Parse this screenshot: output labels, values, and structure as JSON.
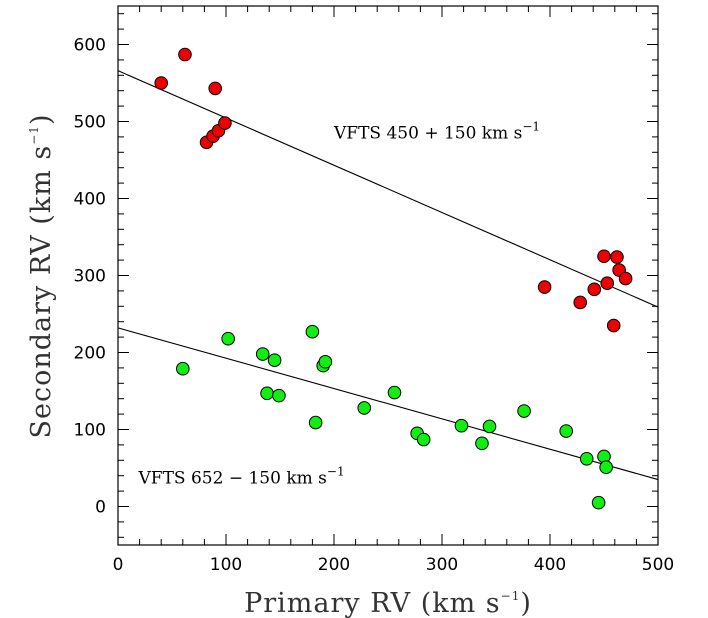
{
  "chart_data": {
    "type": "scatter",
    "xlabel": "Primary RV (km s",
    "xlabel_sup": "−1",
    "xlabel_end": ")",
    "ylabel": "Secondary RV (km s",
    "ylabel_sup": "−1",
    "ylabel_end": ")",
    "xlim": [
      0,
      500
    ],
    "ylim": [
      -50,
      650
    ],
    "x_ticks": [
      0,
      100,
      200,
      300,
      400,
      500
    ],
    "y_ticks": [
      0,
      100,
      200,
      300,
      400,
      500,
      600
    ],
    "x_tick_labels": [
      "0",
      "100",
      "200",
      "300",
      "400",
      "500"
    ],
    "y_tick_labels": [
      "0",
      "100",
      "200",
      "300",
      "400",
      "500",
      "600"
    ],
    "series": [
      {
        "color": "#ee0000",
        "points": [
          [
            40,
            550
          ],
          [
            62,
            587
          ],
          [
            90,
            543
          ],
          [
            82,
            473
          ],
          [
            88,
            481
          ],
          [
            93,
            488
          ],
          [
            99,
            498
          ],
          [
            395,
            285
          ],
          [
            428,
            265
          ],
          [
            441,
            282
          ],
          [
            450,
            325
          ],
          [
            453,
            290
          ],
          [
            462,
            324
          ],
          [
            464,
            307
          ],
          [
            470,
            296
          ],
          [
            459,
            235
          ]
        ],
        "fit_line": [
          [
            0,
            566
          ],
          [
            500,
            259
          ]
        ]
      },
      {
        "color": "#11ee11",
        "points": [
          [
            60,
            179
          ],
          [
            102,
            218
          ],
          [
            134,
            198
          ],
          [
            138,
            147
          ],
          [
            145,
            190
          ],
          [
            149,
            144
          ],
          [
            180,
            227
          ],
          [
            183,
            109
          ],
          [
            190,
            183
          ],
          [
            192,
            188
          ],
          [
            228,
            128
          ],
          [
            256,
            148
          ],
          [
            277,
            95
          ],
          [
            283,
            87
          ],
          [
            318,
            105
          ],
          [
            337,
            82
          ],
          [
            344,
            104
          ],
          [
            376,
            124
          ],
          [
            415,
            98
          ],
          [
            434,
            62
          ],
          [
            445,
            5
          ],
          [
            450,
            65
          ],
          [
            452,
            51
          ]
        ],
        "fit_line": [
          [
            0,
            232
          ],
          [
            500,
            35
          ]
        ]
      }
    ],
    "annotations": [
      {
        "id": "vfts450",
        "text": "VFTS 450 + 150 km s",
        "sup": "−1",
        "x": 200,
        "y": 478
      },
      {
        "id": "vfts652",
        "text": "VFTS 652 − 150 km s",
        "sup": "−1",
        "x": 19,
        "y": 30
      }
    ]
  }
}
